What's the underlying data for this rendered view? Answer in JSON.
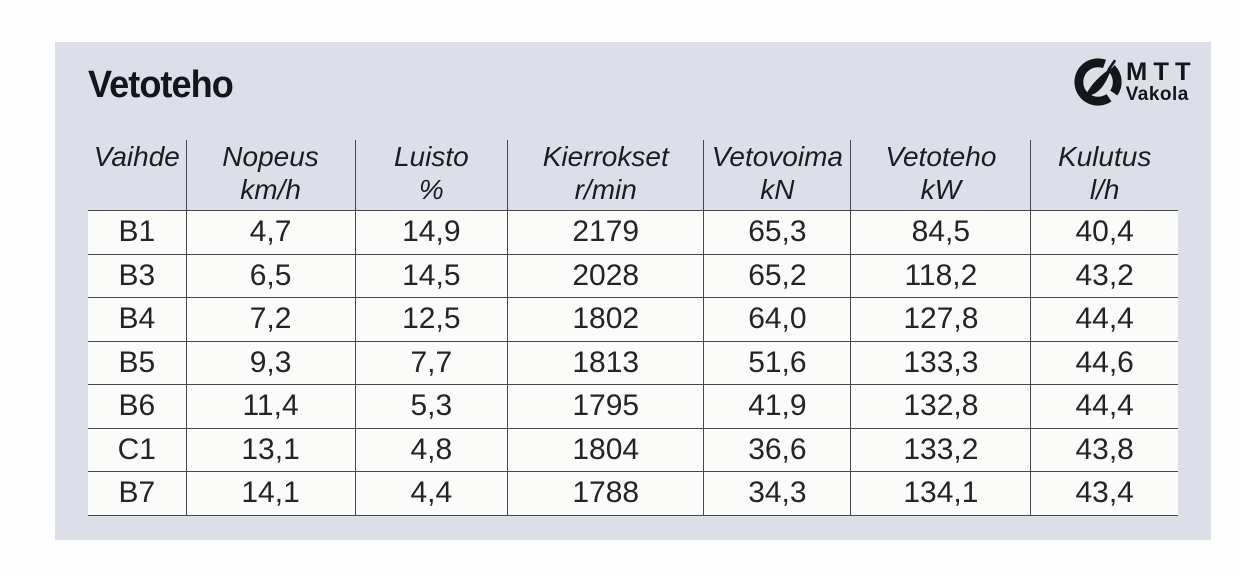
{
  "title": "Vetoteho",
  "logo": {
    "org": "MTT",
    "unit": "Vakola"
  },
  "colors": {
    "card_background": "#dcdfe7",
    "cell_background": "#fbfbf9",
    "line": "#46484e",
    "text": "#1b1d22"
  },
  "table": {
    "columns": [
      {
        "label": "Vaihde",
        "unit": ""
      },
      {
        "label": "Nopeus",
        "unit": "km/h"
      },
      {
        "label": "Luisto",
        "unit": "%"
      },
      {
        "label": "Kierrokset",
        "unit": "r/min"
      },
      {
        "label": "Vetovoima",
        "unit": "kN"
      },
      {
        "label": "Vetoteho",
        "unit": "kW"
      },
      {
        "label": "Kulutus",
        "unit": "l/h"
      }
    ],
    "rows": [
      [
        "B1",
        "4,7",
        "14,9",
        "2179",
        "65,3",
        "84,5",
        "40,4"
      ],
      [
        "B3",
        "6,5",
        "14,5",
        "2028",
        "65,2",
        "118,2",
        "43,2"
      ],
      [
        "B4",
        "7,2",
        "12,5",
        "1802",
        "64,0",
        "127,8",
        "44,4"
      ],
      [
        "B5",
        "9,3",
        "7,7",
        "1813",
        "51,6",
        "133,3",
        "44,6"
      ],
      [
        "B6",
        "11,4",
        "5,3",
        "1795",
        "41,9",
        "132,8",
        "44,4"
      ],
      [
        "C1",
        "13,1",
        "4,8",
        "1804",
        "36,6",
        "133,2",
        "43,8"
      ],
      [
        "B7",
        "14,1",
        "4,4",
        "1788",
        "34,3",
        "134,1",
        "43,4"
      ]
    ]
  },
  "chart_data": {
    "type": "table",
    "title": "Vetoteho",
    "columns": [
      "Vaihde",
      "Nopeus km/h",
      "Luisto %",
      "Kierrokset r/min",
      "Vetovoima kN",
      "Vetoteho kW",
      "Kulutus l/h"
    ],
    "rows": [
      [
        "B1",
        4.7,
        14.9,
        2179,
        65.3,
        84.5,
        40.4
      ],
      [
        "B3",
        6.5,
        14.5,
        2028,
        65.2,
        118.2,
        43.2
      ],
      [
        "B4",
        7.2,
        12.5,
        1802,
        64.0,
        127.8,
        44.4
      ],
      [
        "B5",
        9.3,
        7.7,
        1813,
        51.6,
        133.3,
        44.6
      ],
      [
        "B6",
        11.4,
        5.3,
        1795,
        41.9,
        132.8,
        44.4
      ],
      [
        "C1",
        13.1,
        4.8,
        1804,
        36.6,
        133.2,
        43.8
      ],
      [
        "B7",
        14.1,
        4.4,
        1788,
        34.3,
        134.1,
        43.4
      ]
    ]
  }
}
